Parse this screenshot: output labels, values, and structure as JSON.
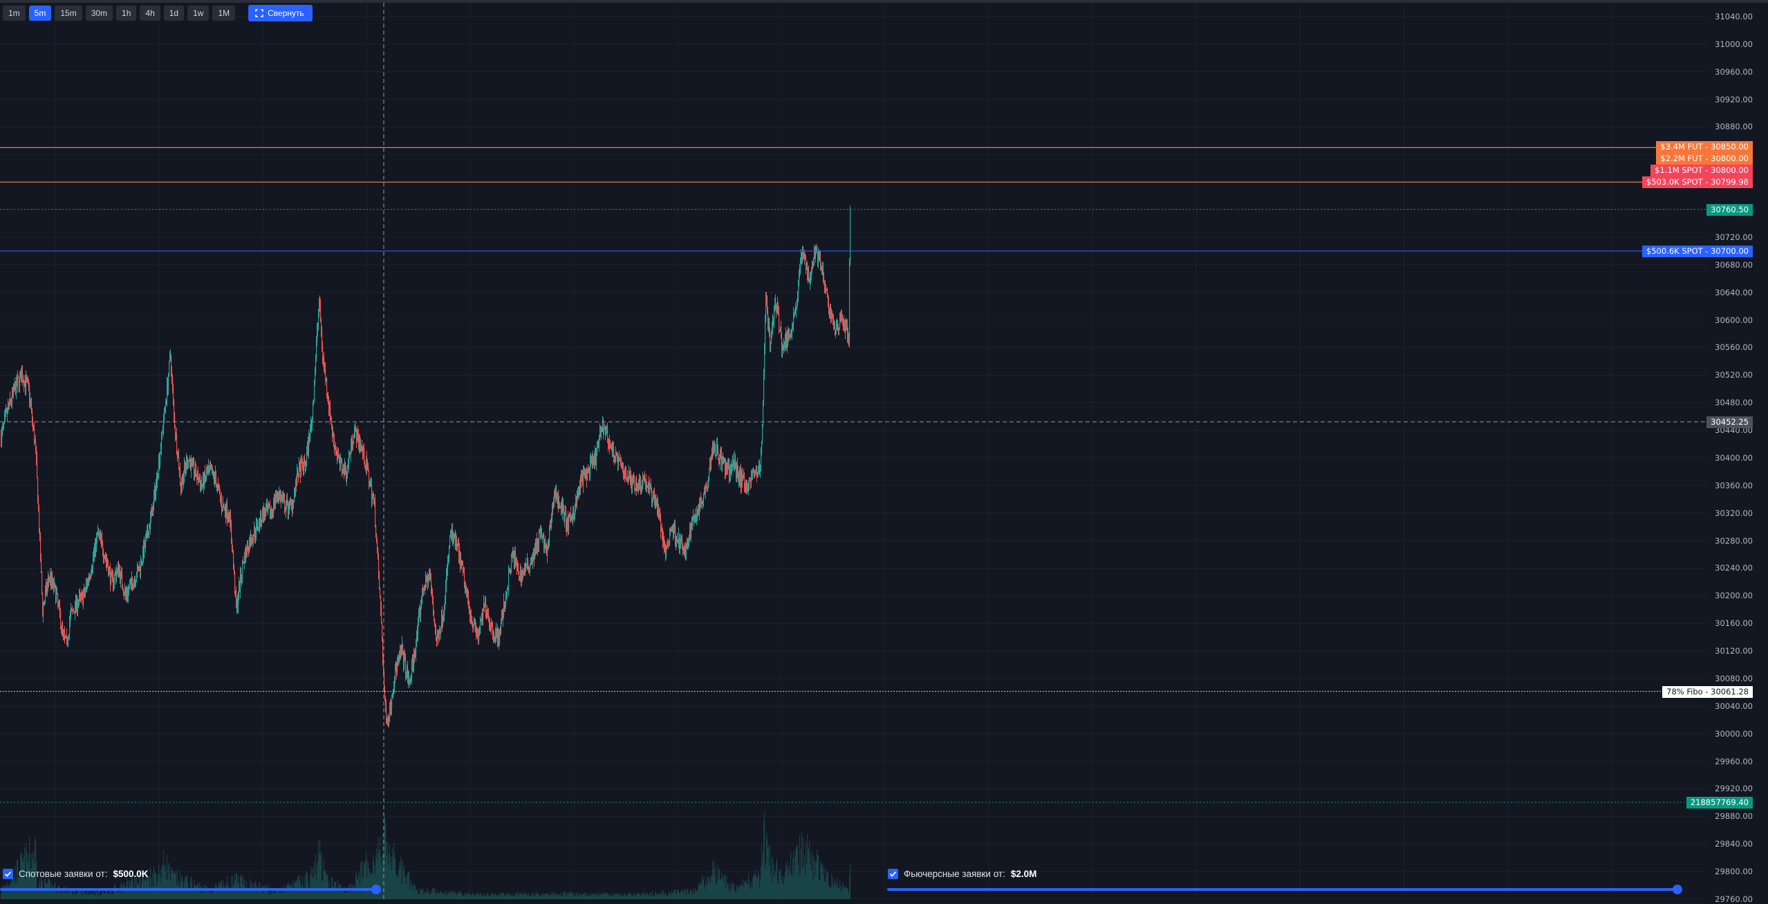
{
  "timeframes": [
    {
      "label": "1m",
      "active": false
    },
    {
      "label": "5m",
      "active": true
    },
    {
      "label": "15m",
      "active": false
    },
    {
      "label": "30m",
      "active": false
    },
    {
      "label": "1h",
      "active": false
    },
    {
      "label": "4h",
      "active": false
    },
    {
      "label": "1d",
      "active": false
    },
    {
      "label": "1w",
      "active": false
    },
    {
      "label": "1M",
      "active": false
    }
  ],
  "collapse_label": "Свернуть",
  "price_axis": {
    "ticks": [
      "31040.00",
      "31000.00",
      "30960.00",
      "30920.00",
      "30880.00",
      "30840.00",
      "30800.00",
      "30760.00",
      "30720.00",
      "30680.00",
      "30640.00",
      "30600.00",
      "30560.00",
      "30520.00",
      "30480.00",
      "30440.00",
      "30400.00",
      "30360.00",
      "30320.00",
      "30280.00",
      "30240.00",
      "30200.00",
      "30160.00",
      "30120.00",
      "30080.00",
      "30040.00",
      "30000.00",
      "29960.00",
      "29920.00",
      "29880.00",
      "29840.00",
      "29800.00",
      "29760.00"
    ],
    "tick_values": [
      31040,
      31000,
      30960,
      30920,
      30880,
      30840,
      30800,
      30760,
      30720,
      30680,
      30640,
      30600,
      30560,
      30520,
      30480,
      30440,
      30400,
      30360,
      30320,
      30280,
      30240,
      30200,
      30160,
      30120,
      30080,
      30040,
      30000,
      29960,
      29920,
      29880,
      29840,
      29800,
      29760
    ]
  },
  "order_levels": [
    {
      "label": "$3.4M FUT - 30850.00",
      "price": 30850.0,
      "color": "#f7773a",
      "kind": "fut"
    },
    {
      "label": "$2.2M FUT - 30800.00",
      "price": 30800.0,
      "color": "#f7773a",
      "kind": "fut"
    },
    {
      "label": "$1.1M SPOT - 30800.00",
      "price": 30800.0,
      "color": "#f2455c",
      "kind": "spot"
    },
    {
      "label": "$503.0K SPOT - 30799.98",
      "price": 30799.98,
      "color": "#f2455c",
      "kind": "spot"
    },
    {
      "label": "$500.6K SPOT - 30700.00",
      "price": 30700.0,
      "color": "#2962ff",
      "kind": "spot"
    }
  ],
  "current_price": {
    "label": "30760.50",
    "price": 30760.5,
    "color": "#089981"
  },
  "crosshair_price": {
    "label": "30452.25",
    "price": 30452.25
  },
  "fibo": {
    "label": "78% Fibo - 30061.28",
    "price": 30061.28
  },
  "volume_marker": {
    "label": "218857769.40"
  },
  "filters": {
    "spot": {
      "label": "Спотовые заявки от:",
      "value": "$500.0K",
      "checked": true
    },
    "futures": {
      "label": "Фьючерсные заявки от:",
      "value": "$2.0M",
      "checked": true
    }
  },
  "chart_data": {
    "type": "candlestick",
    "symbol": "",
    "timeframe": "5m",
    "ylim": [
      29740,
      31060
    ],
    "up_color": "#26a69a",
    "down_color": "#ef5350",
    "anchors_close": [
      [
        0,
        30430
      ],
      [
        10,
        30470
      ],
      [
        20,
        30500
      ],
      [
        30,
        30520
      ],
      [
        40,
        30500
      ],
      [
        50,
        30410
      ],
      [
        55,
        30300
      ],
      [
        60,
        30180
      ],
      [
        70,
        30230
      ],
      [
        80,
        30200
      ],
      [
        90,
        30140
      ],
      [
        95,
        30130
      ],
      [
        100,
        30170
      ],
      [
        110,
        30190
      ],
      [
        120,
        30200
      ],
      [
        130,
        30240
      ],
      [
        140,
        30290
      ],
      [
        150,
        30260
      ],
      [
        160,
        30220
      ],
      [
        170,
        30240
      ],
      [
        180,
        30200
      ],
      [
        190,
        30220
      ],
      [
        200,
        30240
      ],
      [
        210,
        30280
      ],
      [
        220,
        30330
      ],
      [
        230,
        30410
      ],
      [
        240,
        30500
      ],
      [
        245,
        30550
      ],
      [
        250,
        30460
      ],
      [
        260,
        30360
      ],
      [
        270,
        30400
      ],
      [
        280,
        30380
      ],
      [
        290,
        30360
      ],
      [
        300,
        30380
      ],
      [
        310,
        30370
      ],
      [
        320,
        30330
      ],
      [
        330,
        30320
      ],
      [
        335,
        30260
      ],
      [
        340,
        30180
      ],
      [
        350,
        30250
      ],
      [
        360,
        30280
      ],
      [
        370,
        30300
      ],
      [
        380,
        30320
      ],
      [
        390,
        30320
      ],
      [
        400,
        30350
      ],
      [
        410,
        30330
      ],
      [
        420,
        30330
      ],
      [
        430,
        30380
      ],
      [
        440,
        30390
      ],
      [
        450,
        30460
      ],
      [
        460,
        30630
      ],
      [
        465,
        30550
      ],
      [
        470,
        30510
      ],
      [
        480,
        30430
      ],
      [
        490,
        30390
      ],
      [
        500,
        30380
      ],
      [
        510,
        30440
      ],
      [
        520,
        30420
      ],
      [
        530,
        30380
      ],
      [
        540,
        30330
      ],
      [
        550,
        30160
      ],
      [
        555,
        30040
      ],
      [
        560,
        30020
      ],
      [
        570,
        30090
      ],
      [
        580,
        30120
      ],
      [
        590,
        30070
      ],
      [
        600,
        30130
      ],
      [
        610,
        30210
      ],
      [
        620,
        30230
      ],
      [
        630,
        30130
      ],
      [
        640,
        30180
      ],
      [
        650,
        30290
      ],
      [
        660,
        30270
      ],
      [
        670,
        30220
      ],
      [
        680,
        30170
      ],
      [
        690,
        30140
      ],
      [
        700,
        30190
      ],
      [
        710,
        30150
      ],
      [
        720,
        30140
      ],
      [
        730,
        30200
      ],
      [
        740,
        30260
      ],
      [
        750,
        30230
      ],
      [
        760,
        30240
      ],
      [
        770,
        30260
      ],
      [
        780,
        30290
      ],
      [
        790,
        30260
      ],
      [
        800,
        30350
      ],
      [
        810,
        30330
      ],
      [
        820,
        30300
      ],
      [
        830,
        30330
      ],
      [
        840,
        30370
      ],
      [
        850,
        30380
      ],
      [
        860,
        30400
      ],
      [
        870,
        30450
      ],
      [
        880,
        30420
      ],
      [
        890,
        30400
      ],
      [
        900,
        30380
      ],
      [
        910,
        30370
      ],
      [
        920,
        30360
      ],
      [
        930,
        30370
      ],
      [
        940,
        30350
      ],
      [
        950,
        30330
      ],
      [
        960,
        30260
      ],
      [
        970,
        30300
      ],
      [
        980,
        30280
      ],
      [
        990,
        30260
      ],
      [
        1000,
        30310
      ],
      [
        1010,
        30330
      ],
      [
        1020,
        30360
      ],
      [
        1030,
        30420
      ],
      [
        1040,
        30400
      ],
      [
        1050,
        30380
      ],
      [
        1060,
        30390
      ],
      [
        1070,
        30370
      ],
      [
        1080,
        30360
      ],
      [
        1090,
        30380
      ],
      [
        1098,
        30380
      ],
      [
        1102,
        30480
      ],
      [
        1106,
        30640
      ],
      [
        1112,
        30560
      ],
      [
        1120,
        30630
      ],
      [
        1130,
        30560
      ],
      [
        1140,
        30580
      ],
      [
        1150,
        30620
      ],
      [
        1158,
        30700
      ],
      [
        1164,
        30680
      ],
      [
        1170,
        30660
      ],
      [
        1176,
        30700
      ],
      [
        1184,
        30690
      ],
      [
        1192,
        30640
      ],
      [
        1200,
        30610
      ],
      [
        1208,
        30580
      ],
      [
        1214,
        30610
      ],
      [
        1220,
        30590
      ],
      [
        1226,
        30580
      ],
      [
        1228,
        30760
      ]
    ],
    "anchors_volume": [
      [
        0,
        0.1
      ],
      [
        50,
        0.55
      ],
      [
        52,
        0.2
      ],
      [
        100,
        0.08
      ],
      [
        150,
        0.07
      ],
      [
        230,
        0.3
      ],
      [
        238,
        0.42
      ],
      [
        245,
        0.25
      ],
      [
        300,
        0.1
      ],
      [
        340,
        0.2
      ],
      [
        400,
        0.08
      ],
      [
        450,
        0.25
      ],
      [
        460,
        0.5
      ],
      [
        470,
        0.2
      ],
      [
        500,
        0.1
      ],
      [
        550,
        0.55
      ],
      [
        556,
        0.7
      ],
      [
        565,
        0.45
      ],
      [
        600,
        0.1
      ],
      [
        700,
        0.05
      ],
      [
        800,
        0.06
      ],
      [
        900,
        0.05
      ],
      [
        1000,
        0.08
      ],
      [
        1030,
        0.3
      ],
      [
        1060,
        0.12
      ],
      [
        1098,
        0.25
      ],
      [
        1102,
        0.75
      ],
      [
        1108,
        0.45
      ],
      [
        1130,
        0.22
      ],
      [
        1158,
        0.55
      ],
      [
        1200,
        0.22
      ],
      [
        1226,
        0.1
      ],
      [
        1228,
        0.65
      ]
    ]
  }
}
